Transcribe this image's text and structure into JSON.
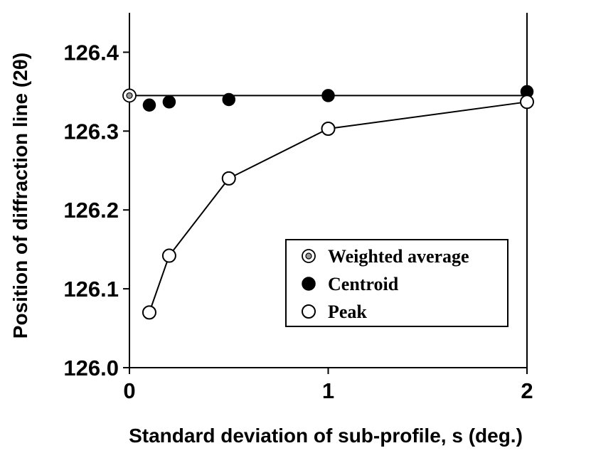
{
  "chart_data": {
    "type": "scatter",
    "xlabel": "Standard deviation of sub-profile, s (deg.)",
    "ylabel": "Position of diffraction line (2θ)",
    "xlim": [
      0,
      2
    ],
    "ylim": [
      126.0,
      126.45
    ],
    "xticks": [
      {
        "value": 0,
        "label": "0"
      },
      {
        "value": 1,
        "label": "1"
      },
      {
        "value": 2,
        "label": "2"
      }
    ],
    "yticks": [
      {
        "value": 126.0,
        "label": "126.0"
      },
      {
        "value": 126.1,
        "label": "126.1"
      },
      {
        "value": 126.2,
        "label": "126.2"
      },
      {
        "value": 126.3,
        "label": "126.3"
      },
      {
        "value": 126.4,
        "label": "126.4"
      }
    ],
    "grid": false,
    "legend_position": "lower-right",
    "series": [
      {
        "name": "Weighted average",
        "marker": "double-circle",
        "line": "horizontal",
        "x": [
          0
        ],
        "y": [
          126.345
        ]
      },
      {
        "name": "Centroid",
        "marker": "filled-circle",
        "line": "none",
        "x": [
          0.1,
          0.2,
          0.5,
          1.0,
          2.0
        ],
        "y": [
          126.333,
          126.337,
          126.34,
          126.345,
          126.35
        ]
      },
      {
        "name": "Peak",
        "marker": "open-circle",
        "line": "solid",
        "x": [
          0.1,
          0.2,
          0.5,
          1.0,
          2.0
        ],
        "y": [
          126.07,
          126.142,
          126.24,
          126.303,
          126.337
        ]
      }
    ],
    "reference_line": {
      "series": "Weighted average",
      "y": 126.345
    }
  },
  "colors": {
    "axis": "#000000",
    "marker_fill": "#000000",
    "open_fill": "#ffffff",
    "weighted_inner": "#999999"
  }
}
